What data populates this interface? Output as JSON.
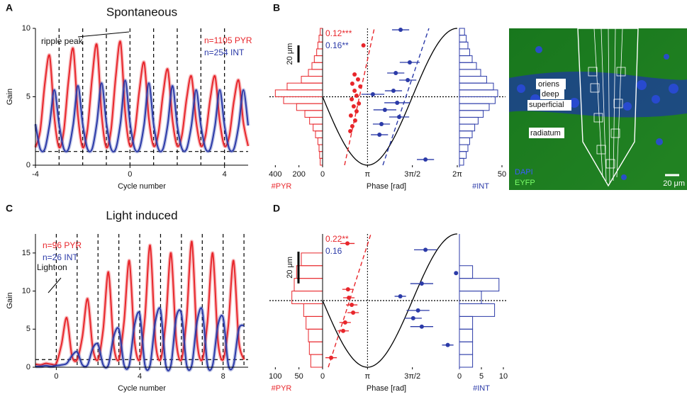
{
  "chart_data": [
    {
      "type": "line",
      "panel": "A",
      "title": "Spontaneous",
      "xlabel": "Cycle number",
      "ylabel": "Gain",
      "annotations": [
        "ripple peak"
      ],
      "legend": "upper right",
      "x": [
        -4,
        -3.8,
        -3.6,
        -3.4,
        -3.2,
        -3,
        -2.8,
        -2.6,
        -2.4,
        -2.2,
        -2,
        -1.8,
        -1.6,
        -1.4,
        -1.2,
        -1,
        -0.8,
        -0.6,
        -0.4,
        -0.2,
        0,
        0.2,
        0.4,
        0.6,
        0.8,
        1,
        1.2,
        1.4,
        1.6,
        1.8,
        2,
        2.2,
        2.4,
        2.6,
        2.8,
        3,
        3.2,
        3.4,
        3.6,
        3.8,
        4,
        4.2,
        4.4,
        4.6,
        4.8,
        5
      ],
      "series": [
        {
          "name": "n=1105 PYR",
          "color": "#e8262b",
          "values": [
            1.3,
            2.5,
            6,
            8,
            3.5,
            1.3,
            2.5,
            6.2,
            8.5,
            3.6,
            1.3,
            2.6,
            6.4,
            8.8,
            3.7,
            1.3,
            2.6,
            6.5,
            9,
            3.8,
            1.4,
            2.4,
            5.5,
            7.5,
            3.4,
            1.4,
            2.3,
            5.2,
            7,
            3.3,
            1.4,
            2.2,
            4.9,
            6.5,
            3.2,
            1.4,
            2.2,
            4.9,
            6.5,
            3.2,
            1.4,
            2.1,
            4.7,
            6.2,
            3.1,
            1.4
          ]
        },
        {
          "name": "n=254 INT",
          "color": "#2b3aa8",
          "values": [
            3,
            1.2,
            1.2,
            3,
            5.5,
            3,
            1.2,
            1.2,
            3,
            5.8,
            3,
            1.2,
            1.2,
            3.1,
            6,
            3.1,
            1.2,
            1.2,
            3.1,
            6.2,
            3.1,
            1.2,
            1.2,
            3,
            6,
            3,
            1.2,
            1.2,
            3,
            5.8,
            2.9,
            1.2,
            1.2,
            2.9,
            5.5,
            2.9,
            1.2,
            1.2,
            2.9,
            5.5,
            2.9,
            1.2,
            1.2,
            2.9,
            5.5,
            2.9
          ]
        }
      ],
      "xlim": [
        -4,
        5
      ],
      "xticks": [
        -4,
        0,
        4
      ],
      "ylim": [
        0,
        10
      ],
      "yticks": [
        0,
        5,
        10
      ],
      "baseline": 1
    },
    {
      "type": "phase_depth",
      "panel": "B",
      "xlabel": "Phase [rad]",
      "scalebar": {
        "value": 20,
        "label": "20 μm"
      },
      "ylim": [
        -80,
        80
      ],
      "xlim": [
        1.5708,
        6.2832
      ],
      "xticks": [
        {
          "value": 3.1416,
          "label": "π"
        },
        {
          "value": 4.7124,
          "label": "3π/2"
        },
        {
          "value": 6.2832,
          "label": "2π"
        }
      ],
      "bins": [
        -80,
        -72,
        -64,
        -56,
        -48,
        -40,
        -32,
        -24,
        -16,
        -8,
        0,
        8,
        16,
        24,
        32,
        40,
        48,
        56,
        64,
        72,
        80
      ],
      "pyr_hist": {
        "label": "#PYR",
        "color": "#e8262b",
        "counts": [
          20,
          25,
          30,
          40,
          60,
          80,
          110,
          150,
          220,
          330,
          400,
          300,
          180,
          120,
          90,
          70,
          50,
          40,
          30,
          20
        ],
        "xlim": [
          420,
          0
        ],
        "xticks": [
          400,
          200,
          0
        ]
      },
      "int_hist": {
        "label": "#INT",
        "color": "#2b3aa8",
        "counts": [
          5,
          8,
          10,
          12,
          15,
          18,
          22,
          28,
          35,
          42,
          45,
          40,
          32,
          25,
          20,
          15,
          12,
          10,
          8,
          6
        ],
        "xlim": [
          0,
          50
        ],
        "xticks": [
          50
        ]
      },
      "series": [
        {
          "name": "0.12***",
          "color": "#e8262b",
          "x": [
            3.0,
            2.69,
            2.81,
            2.61,
            2.89,
            2.69,
            2.76,
            2.59,
            2.84,
            2.66,
            2.76,
            2.56,
            2.71,
            2.61,
            2.54
          ],
          "y": [
            60.1,
            26.1,
            20.3,
            15.3,
            12.0,
            7.0,
            1.2,
            -2.9,
            -7.9,
            -11.2,
            -17.0,
            -22.0,
            -27.8,
            -34.4,
            -40.2
          ],
          "fit": {
            "x": [
              2.34,
              3.38
            ],
            "y": [
              -80,
              80
            ]
          }
        },
        {
          "name": "0.16**",
          "color": "#2b3aa8",
          "x": [
            4.3,
            4.62,
            4.13,
            4.55,
            4.05,
            3.33,
            4.18,
            3.75,
            4.25,
            3.63,
            3.56,
            5.17
          ],
          "y": [
            78.3,
            40.2,
            27.8,
            19.5,
            7.0,
            2.9,
            -7.0,
            -15.3,
            -23.6,
            -31.9,
            -44.4,
            -73.4
          ],
          "xerr": [
            0.3,
            0.35,
            0.3,
            0.3,
            0.3,
            0.4,
            0.45,
            0.4,
            0.35,
            0.3,
            0.3,
            0.3
          ],
          "fit": {
            "x": [
              3.68,
              5.29
            ],
            "y": [
              -80,
              80
            ]
          }
        }
      ]
    },
    {
      "type": "line",
      "panel": "C",
      "title": "Light induced",
      "xlabel": "Cycle number",
      "ylabel": "Gain",
      "annotations": [
        "Light on"
      ],
      "legend": "upper left",
      "x": [
        -1,
        -0.75,
        -0.5,
        -0.25,
        0,
        0.25,
        0.5,
        0.75,
        1,
        1.25,
        1.5,
        1.75,
        2,
        2.25,
        2.5,
        2.75,
        3,
        3.25,
        3.5,
        3.75,
        4,
        4.25,
        4.5,
        4.75,
        5,
        5.25,
        5.5,
        5.75,
        6,
        6.25,
        6.5,
        6.75,
        7,
        7.25,
        7.5,
        7.75,
        8,
        8.25,
        8.5,
        8.75,
        9
      ],
      "series": [
        {
          "name": "n=96 PYR",
          "color": "#e8262b",
          "values": [
            0.4,
            0.3,
            0.5,
            0.4,
            0.5,
            3,
            6.5,
            1.5,
            1,
            4,
            9,
            2.5,
            1,
            5,
            12.5,
            3,
            1,
            6,
            14,
            3.5,
            1,
            6.5,
            16,
            3.5,
            1,
            6,
            15,
            3.5,
            1,
            6.5,
            16.5,
            3.5,
            1,
            6,
            15,
            3.5,
            1,
            5.5,
            14,
            3.5,
            1
          ]
        },
        {
          "name": "n=26 INT",
          "color": "#2b3aa8",
          "values": [
            0.1,
            0.1,
            0.2,
            0.1,
            0.2,
            0.3,
            0.5,
            1.5,
            2,
            0.3,
            0.3,
            2.5,
            3,
            0.3,
            0.3,
            4,
            5,
            0.3,
            0.3,
            5.5,
            7,
            0.3,
            0.3,
            6,
            7.5,
            0.3,
            0.3,
            6.5,
            7,
            0.3,
            0.3,
            6,
            7.5,
            0.3,
            0.3,
            5.5,
            6.5,
            0.3,
            0.3,
            5,
            5.5
          ]
        }
      ],
      "xlim": [
        -1,
        9.2
      ],
      "xticks": [
        0,
        4,
        8
      ],
      "ylim": [
        0,
        17.5
      ],
      "yticks": [
        0,
        5,
        10,
        15
      ],
      "baseline": 1
    },
    {
      "type": "phase_depth",
      "panel": "D",
      "xlabel": "Phase [rad]",
      "scalebar": {
        "value": 20,
        "label": "20 μm"
      },
      "ylim": [
        -42,
        42
      ],
      "xlim": [
        1.5708,
        6.2832
      ],
      "xticks": [
        {
          "value": 3.1416,
          "label": "π"
        },
        {
          "value": 4.7124,
          "label": "3π/2"
        }
      ],
      "bins": [
        -42,
        -34,
        -26,
        -18,
        -10,
        -2,
        6,
        14,
        22,
        30
      ],
      "pyr_hist": {
        "label": "#PYR",
        "color": "#e8262b",
        "counts": [
          25,
          28,
          30,
          35,
          40,
          65,
          60,
          55,
          45
        ],
        "xlim": [
          105,
          0
        ],
        "xticks": [
          100,
          50,
          0
        ]
      },
      "int_hist": {
        "label": "#INT",
        "color": "#2b3aa8",
        "counts": [
          3,
          3,
          3,
          3,
          8,
          5,
          9,
          3,
          0
        ],
        "xlim": [
          0,
          10
        ],
        "xticks": [
          0,
          5,
          10
        ]
      },
      "series": [
        {
          "name": "0.22**",
          "color": "#e8262b",
          "x": [
            2.44,
            2.46,
            2.49,
            2.59,
            2.64,
            2.36,
            2.29,
            1.87
          ],
          "y": [
            36.0,
            7.1,
            1.8,
            -2.7,
            -7.6,
            -13.8,
            -19.1,
            -36.0
          ],
          "xerr": [
            0.25,
            0.2,
            0.2,
            0.2,
            0.2,
            0.2,
            0.2,
            0.2
          ],
          "fit": {
            "x": [
              1.77,
              3.26
            ],
            "y": [
              -42,
              42
            ]
          }
        },
        {
          "name": "0.16",
          "color": "#2b3aa8",
          "x": [
            5.17,
            6.24,
            5.04,
            4.29,
            4.91,
            4.74,
            5.04,
            5.95
          ],
          "y": [
            32.0,
            17.3,
            10.7,
            2.7,
            -6.2,
            -11.1,
            -16.4,
            -28.0
          ],
          "xerr": [
            0.4,
            0.05,
            0.4,
            0.2,
            0.4,
            0.3,
            0.4,
            0.2
          ]
        }
      ]
    }
  ],
  "image_panel": {
    "labels": [
      "oriens",
      "deep",
      "superficial",
      "radiatum"
    ],
    "legend": [
      "DAPI",
      "EYFP"
    ],
    "scalebar": "20 μm"
  }
}
